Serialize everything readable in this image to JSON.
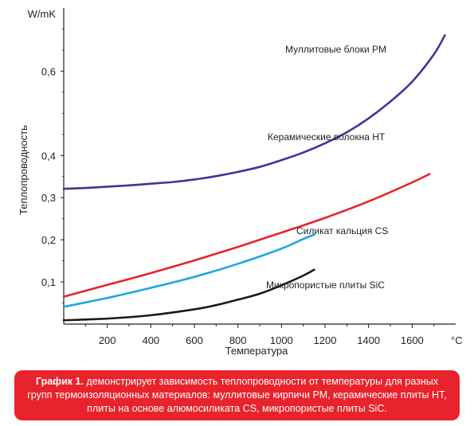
{
  "chart_data": {
    "type": "line",
    "title": "",
    "xlabel": "Температура",
    "ylabel": "Теплопроводность",
    "x_unit": "°C",
    "y_unit": "W/mK",
    "xlim": [
      0,
      1800
    ],
    "ylim": [
      0,
      0.75
    ],
    "x_ticks": [
      200,
      400,
      600,
      800,
      1000,
      1200,
      1400,
      1600
    ],
    "x_tick_labels": [
      "200",
      "400",
      "600",
      "800",
      "1000",
      "1200",
      "1400",
      "1600"
    ],
    "y_ticks": [
      0.1,
      0.2,
      0.3,
      0.4,
      0.6
    ],
    "y_tick_labels": [
      "0,1",
      "0,2",
      "0,3",
      "0,4",
      "0,6"
    ],
    "grid": false,
    "legend": "inline labels",
    "series": [
      {
        "name": "Муллитовые блоки PM",
        "color": "#3b3699",
        "x": [
          0,
          100,
          200,
          300,
          400,
          500,
          600,
          700,
          800,
          900,
          1000,
          1100,
          1200,
          1300,
          1400,
          1500,
          1600,
          1700,
          1750
        ],
        "values": [
          0.321,
          0.323,
          0.326,
          0.329,
          0.333,
          0.337,
          0.343,
          0.351,
          0.361,
          0.373,
          0.389,
          0.407,
          0.429,
          0.455,
          0.488,
          0.528,
          0.575,
          0.64,
          0.685
        ]
      },
      {
        "name": "Керамические волокна HT",
        "color": "#e8232b",
        "x": [
          0,
          200,
          400,
          600,
          800,
          1000,
          1200,
          1400,
          1600,
          1680
        ],
        "values": [
          0.065,
          0.093,
          0.121,
          0.151,
          0.183,
          0.217,
          0.252,
          0.291,
          0.336,
          0.356
        ]
      },
      {
        "name": "Силикат кальция CS",
        "color": "#1fa6dd",
        "x": [
          0,
          200,
          400,
          600,
          800,
          1000,
          1100,
          1150
        ],
        "values": [
          0.041,
          0.062,
          0.086,
          0.112,
          0.143,
          0.179,
          0.202,
          0.212
        ]
      },
      {
        "name": "Микропористые плиты SiC",
        "color": "#1a1a1a",
        "x": [
          0,
          200,
          400,
          600,
          700,
          800,
          900,
          1000,
          1100,
          1150
        ],
        "values": [
          0.009,
          0.013,
          0.021,
          0.035,
          0.045,
          0.058,
          0.072,
          0.092,
          0.115,
          0.129
        ]
      }
    ],
    "annotations": [
      {
        "text": "Муллитовые блоки PM"
      },
      {
        "text": "Керамические волокна HT"
      },
      {
        "text": "Силикат кальция CS"
      },
      {
        "text": "Микропористые плиты SiC"
      }
    ]
  },
  "caption": {
    "bold": "График 1.",
    "text": " демонстрирует зависимость теплопроводности от температуры для разных групп термоизоляционных материалов: муллитовые кирпичи PM, керамические плиты HT, плиты на основе алюмосиликата CS, микропористые плиты SiC."
  },
  "colors": {
    "caption_background": "#e8232b",
    "axis": "#231f20"
  }
}
